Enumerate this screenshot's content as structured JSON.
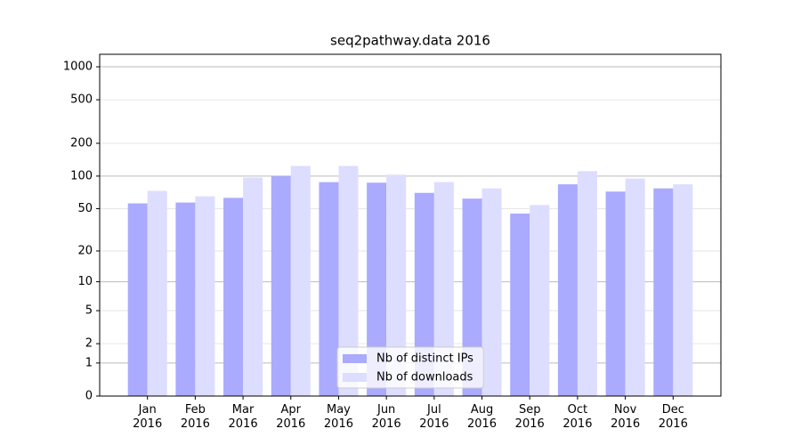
{
  "chart_data": {
    "type": "bar",
    "title": "seq2pathway.data 2016",
    "categories": [
      "Jan\n2016",
      "Feb\n2016",
      "Mar\n2016",
      "Apr\n2016",
      "May\n2016",
      "Jun\n2016",
      "Jul\n2016",
      "Aug\n2016",
      "Sep\n2016",
      "Oct\n2016",
      "Nov\n2016",
      "Dec\n2016"
    ],
    "series": [
      {
        "name": "Nb of distinct IPs",
        "color": "#aaaaff",
        "values": [
          56,
          57,
          63,
          100,
          88,
          87,
          70,
          62,
          45,
          84,
          72,
          77
        ]
      },
      {
        "name": "Nb of downloads",
        "color": "#ddddff",
        "values": [
          73,
          65,
          97,
          124,
          124,
          103,
          88,
          77,
          54,
          111,
          95,
          84
        ]
      }
    ],
    "y_scale": "log1p",
    "ylim": [
      0,
      1300
    ],
    "yticks": [
      0,
      1,
      2,
      5,
      10,
      20,
      50,
      100,
      200,
      500,
      1000
    ],
    "grid": true,
    "legend": "lower center"
  }
}
